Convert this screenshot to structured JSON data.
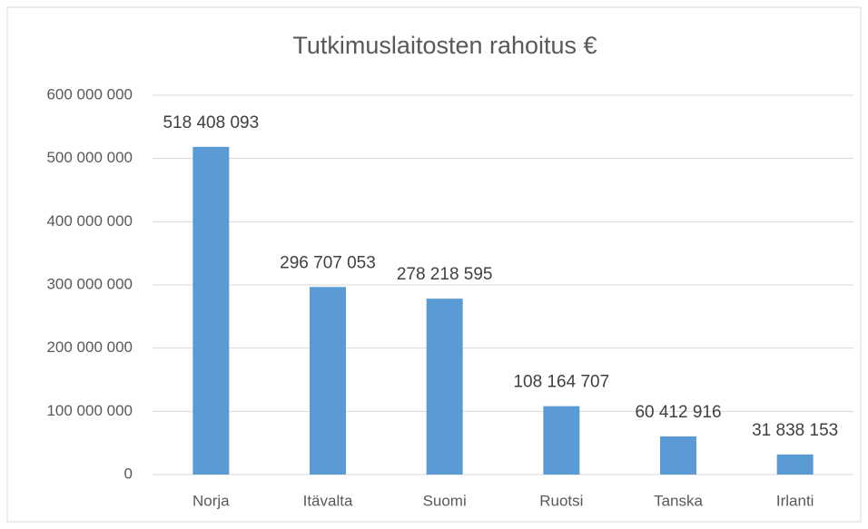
{
  "chart_data": {
    "type": "bar",
    "title": "Tutkimuslaitosten rahoitus €",
    "categories": [
      "Norja",
      "Itävalta",
      "Suomi",
      "Ruotsi",
      "Tanska",
      "Irlanti"
    ],
    "values": [
      518408093,
      296707053,
      278218595,
      108164707,
      60412916,
      31838153
    ],
    "value_labels": [
      "518 408 093",
      "296 707 053",
      "278 218 595",
      "108 164 707",
      "60 412 916",
      "31 838 153"
    ],
    "color": "#5b9bd5",
    "ylim": [
      0,
      600000000
    ],
    "yticks": [
      0,
      {
        "value": 100000000,
        "label": "100 000 000"
      },
      {
        "value": 200000000,
        "label": "200 000 000"
      },
      {
        "value": 300000000,
        "label": "300 000 000"
      },
      {
        "value": 400000000,
        "label": "400 000 000"
      },
      {
        "value": 500000000,
        "label": "500 000 000"
      },
      {
        "value": 600000000,
        "label": "600 000 000"
      }
    ],
    "grid": true
  }
}
